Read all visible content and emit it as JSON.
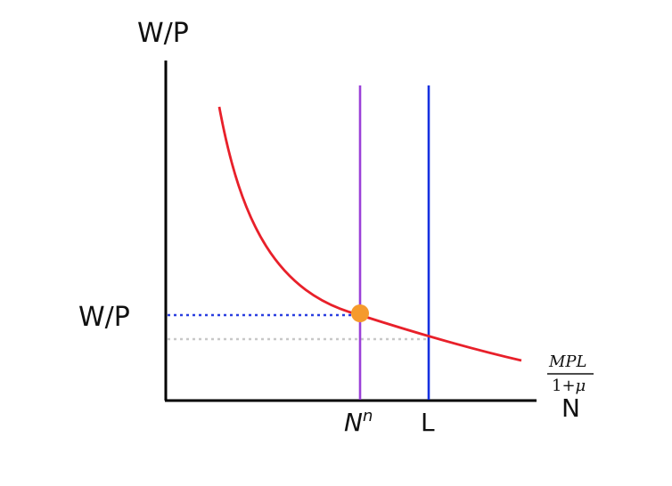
{
  "diagram": {
    "y_axis_label": "W/P",
    "x_axis_label": "N",
    "wage_tick_label": "W/P",
    "nn_tick_base": "N",
    "nn_tick_superscript": "n",
    "l_tick_label": "L",
    "curve_label_numerator": "MPL",
    "curve_label_denominator_prefix": "1+",
    "curve_label_denominator_symbol": "μ"
  },
  "colors": {
    "curve": "#e8202a",
    "nn_line": "#9b40d8",
    "l_line": "#1530e0",
    "wage_guide": "#2a3fe0",
    "low_guide": "#c8c8c8",
    "equilibrium_point": "#f59a2c",
    "axes": "#000000"
  }
}
